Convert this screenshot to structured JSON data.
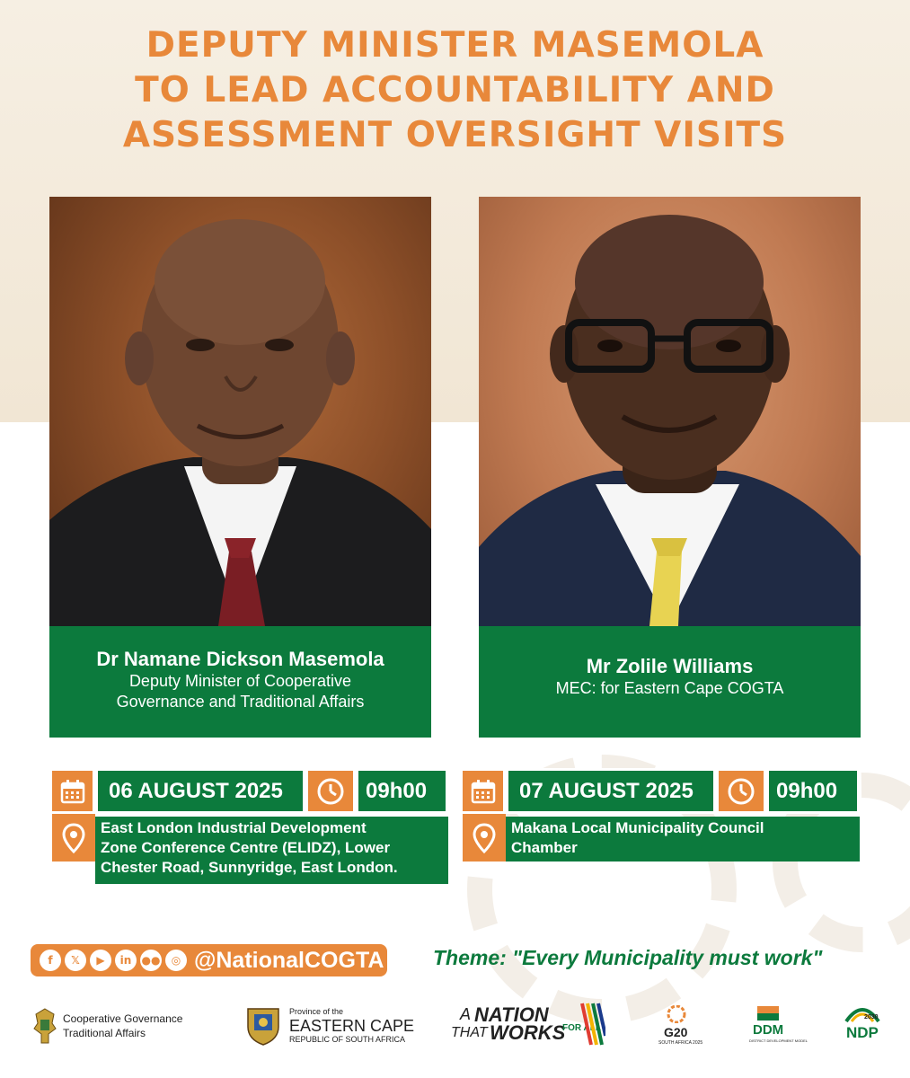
{
  "headline": [
    "DEPUTY MINISTER MASEMOLA",
    "TO LEAD ACCOUNTABILITY AND",
    "ASSESSMENT OVERSIGHT VISITS"
  ],
  "officials": [
    {
      "name": "Dr Namane Dickson Masemola",
      "role_lines": [
        "Deputy Minister of Cooperative",
        "Governance and Traditional Affairs"
      ]
    },
    {
      "name": "Mr Zolile Williams",
      "role_lines": [
        "MEC: for Eastern Cape COGTA"
      ]
    }
  ],
  "events": [
    {
      "date": "06 AUGUST 2025",
      "time": "09h00",
      "venue_lines": [
        "East London Industrial Development",
        "Zone Conference Centre (ELIDZ), Lower",
        "Chester Road, Sunnyridge, East London."
      ]
    },
    {
      "date": "07 AUGUST 2025",
      "time": "09h00",
      "venue_lines": [
        "Makana Local Municipality Council",
        "Chamber"
      ]
    }
  ],
  "footer": {
    "social_handle": "@NationalCOGTA",
    "social_icons": [
      "facebook-icon",
      "x-icon",
      "youtube-icon",
      "linkedin-icon",
      "flickr-icon",
      "instagram-icon"
    ],
    "theme": "Theme: \"Every Municipality must work\""
  },
  "logos": {
    "cogta_line1": "Cooperative Governance",
    "cogta_line2": "Traditional Affairs",
    "ec_line1": "Province of the",
    "ec_line2": "EASTERN CAPE",
    "ec_line3": "REPUBLIC OF SOUTH AFRICA",
    "nation_a": "A",
    "nation_word": "NATION",
    "nation_that": "THAT",
    "nation_works": "WORKS",
    "nation_forall": "FOR ALL",
    "g20": "G20",
    "g20_sub": "SOUTH AFRICA 2025",
    "ddm": "DDM",
    "ddm_sub": "DISTRICT DEVELOPMENT MODEL",
    "ndp": "NDP",
    "ndp_year": "2030"
  },
  "colors": {
    "orange": "#e8883a",
    "green": "#0c7a3d",
    "cream": "#f6efe3"
  }
}
